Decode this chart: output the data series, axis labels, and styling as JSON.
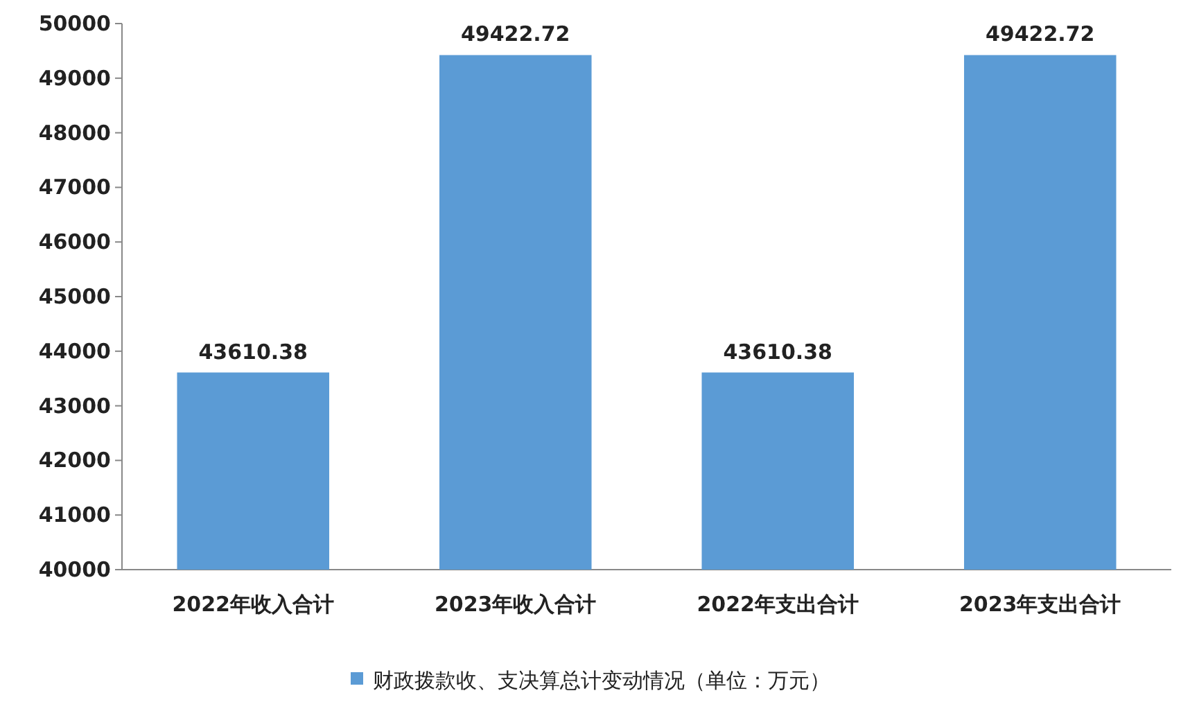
{
  "chart_data": {
    "type": "bar",
    "categories": [
      "2022年收入合计",
      "2023年收入合计",
      "2022年支出合计",
      "2023年支出合计"
    ],
    "series": [
      {
        "name": "财政拨款收、支决算总计变动情况（单位：万元）",
        "color": "#5b9bd5",
        "values": [
          43610.38,
          49422.72,
          43610.38,
          49422.72
        ]
      }
    ],
    "ylim": [
      40000,
      50000
    ],
    "yticks": [
      40000,
      41000,
      42000,
      43000,
      44000,
      45000,
      46000,
      47000,
      48000,
      49000,
      50000
    ],
    "data_labels": true,
    "legend": "bottom",
    "grid": false
  }
}
